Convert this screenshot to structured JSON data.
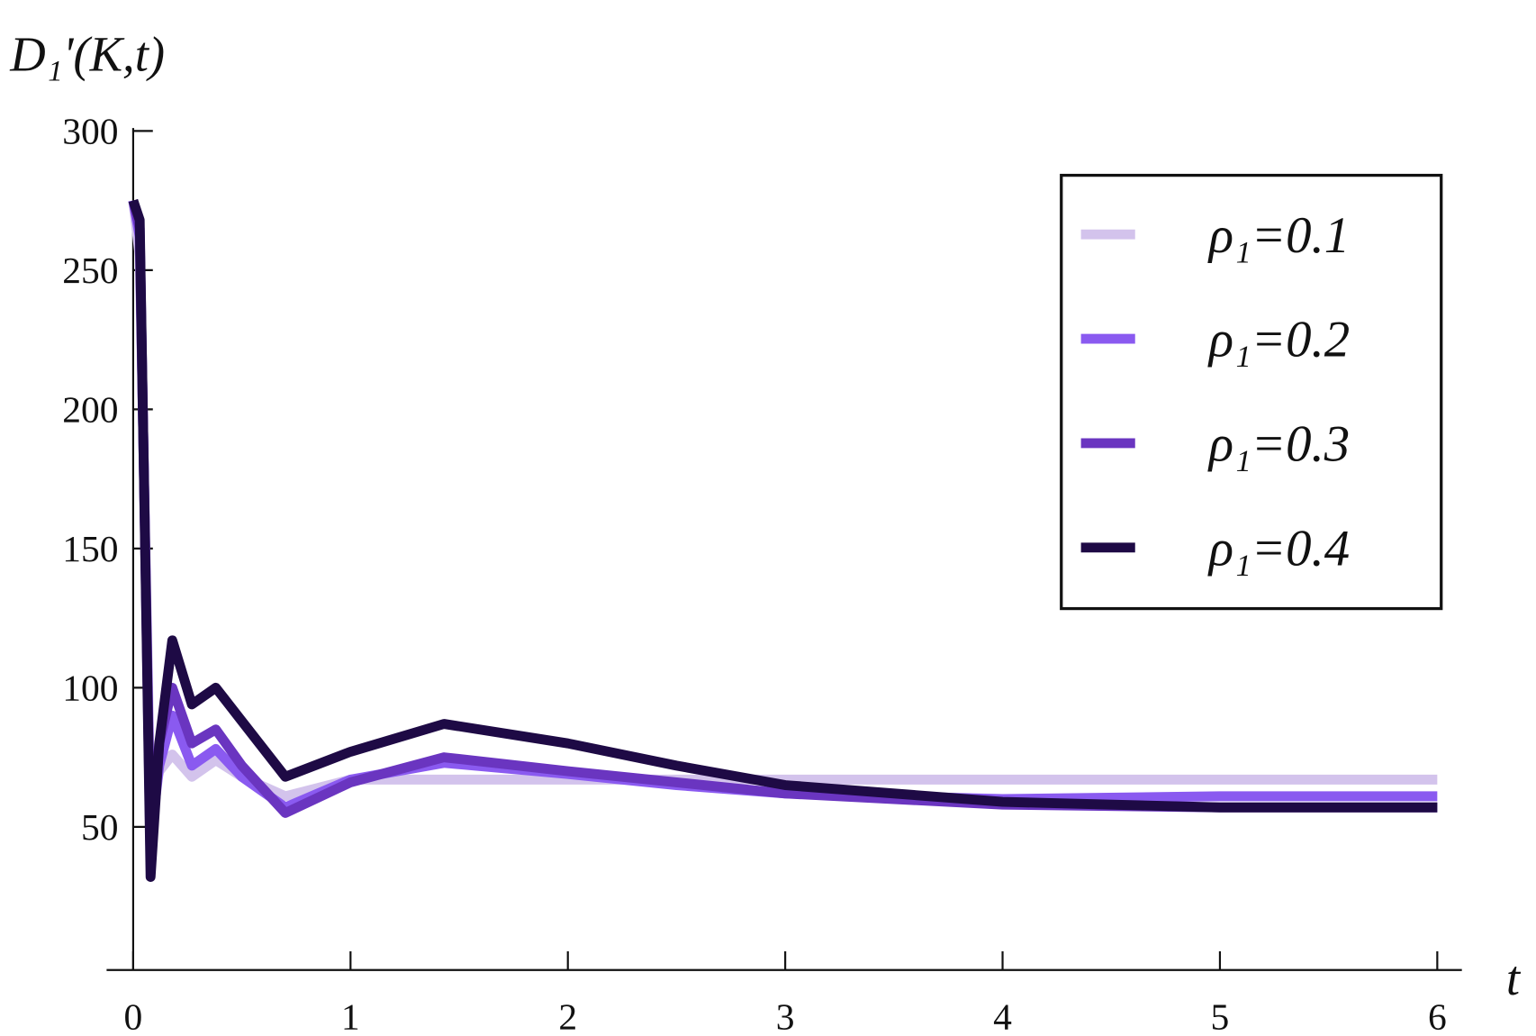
{
  "chart_data": {
    "type": "line",
    "y_label": "D₁'(K,t)",
    "x_label": "t",
    "x": [
      0,
      0.03,
      0.08,
      0.12,
      0.18,
      0.27,
      0.38,
      0.5,
      0.7,
      1,
      1.43,
      2,
      2.5,
      3,
      4,
      5,
      6
    ],
    "series": [
      {
        "name": "ρ₁=0.1",
        "color": "#d3c3ec",
        "values": [
          275,
          255,
          55,
          70,
          76,
          68,
          74,
          68,
          61,
          67,
          67,
          67,
          67,
          67,
          67,
          67,
          67
        ]
      },
      {
        "name": "ρ₁=0.2",
        "color": "#8a5af0",
        "values": [
          275,
          262,
          45,
          72,
          90,
          72,
          78,
          68,
          57,
          67,
          73,
          69,
          65,
          62,
          60,
          61,
          61
        ]
      },
      {
        "name": "ρ₁=0.3",
        "color": "#6a35c0",
        "values": [
          275,
          265,
          38,
          80,
          100,
          80,
          85,
          72,
          55,
          66,
          75,
          70,
          66,
          62,
          58,
          57,
          57
        ]
      },
      {
        "name": "ρ₁=0.4",
        "color": "#1e0a45",
        "values": [
          275,
          268,
          32,
          80,
          117,
          94,
          100,
          88,
          68,
          77,
          87,
          80,
          72,
          65,
          59,
          57,
          57
        ]
      }
    ],
    "xlim": [
      0,
      6
    ],
    "ylim": [
      0,
      300
    ],
    "xticks": [
      0,
      1,
      2,
      3,
      4,
      5,
      6
    ],
    "yticks": [
      50,
      100,
      150,
      200,
      250,
      300
    ],
    "legend": "upper right"
  }
}
